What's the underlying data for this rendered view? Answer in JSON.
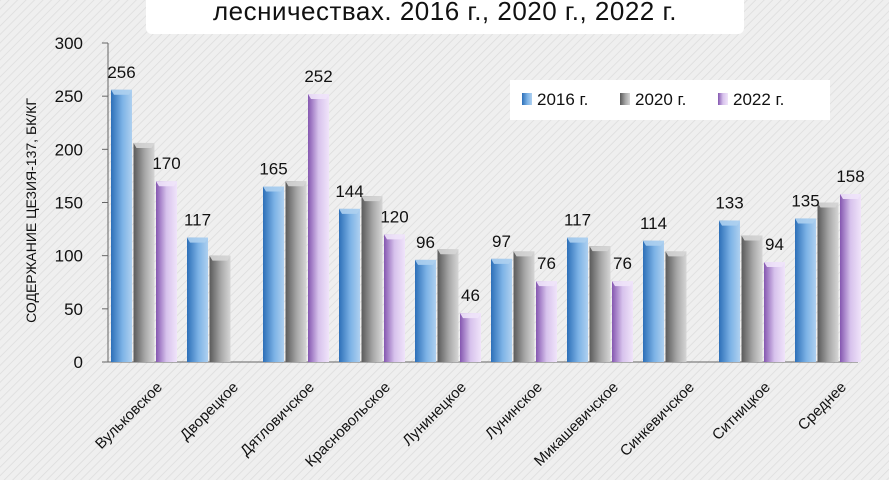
{
  "chart_data": {
    "type": "bar",
    "title": "лесничествах. 2016 г., 2020 г., 2022 г.",
    "ylabel": "СОДЕРЖАНИЕ ЦЕЗИЯ-137, БК/КГ",
    "xlabel": "",
    "ylim": [
      0,
      300
    ],
    "yticks": [
      0,
      50,
      100,
      150,
      200,
      250,
      300
    ],
    "categories": [
      "Вульковское",
      "Дворецкое",
      "Дятловичское",
      "Красновольское",
      "Лунинецкое",
      "Лунинское",
      "Микашевичское",
      "Синкевичское",
      "Ситницкое",
      "Среднее"
    ],
    "series": [
      {
        "name": "2016 г.",
        "values": [
          256,
          117,
          165,
          144,
          96,
          97,
          117,
          114,
          133,
          135
        ],
        "labels": [
          "256",
          "117",
          "165",
          "144",
          "96",
          "97",
          "117",
          "114",
          "133",
          "135"
        ]
      },
      {
        "name": "2020 г.",
        "values": [
          206,
          100,
          170,
          156,
          106,
          104,
          109,
          104,
          119,
          150
        ],
        "labels": [
          "",
          "",
          "",
          "",
          "",
          "",
          "",
          "",
          "",
          ""
        ]
      },
      {
        "name": "2022 г.",
        "values": [
          170,
          null,
          252,
          120,
          46,
          76,
          76,
          null,
          94,
          158
        ],
        "labels": [
          "170",
          "",
          "252",
          "120",
          "46",
          "76",
          "76",
          "",
          "94",
          "158"
        ]
      }
    ],
    "legend": {
      "position": "top-right"
    },
    "grid": false
  },
  "colors": {
    "s2016": [
      "#2d6fb8",
      "#aed0f0"
    ],
    "s2020": [
      "#5a5a5a",
      "#d6d6d6"
    ],
    "s2022": [
      "#8456b0",
      "#f0e4fa"
    ]
  }
}
